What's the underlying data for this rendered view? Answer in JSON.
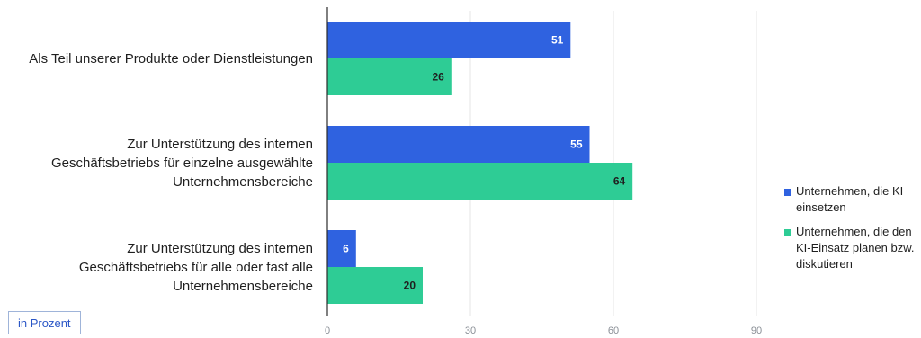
{
  "unit_label": "in Prozent",
  "colors": {
    "series1": "#2f62e0",
    "series2": "#2ecc95",
    "grid": "#e6e6e6",
    "axis": "#2b2b2b"
  },
  "chart_data": {
    "type": "bar",
    "orientation": "horizontal",
    "categories": [
      [
        "Als Teil unserer Produkte oder Dienstleistungen"
      ],
      [
        "Zur Unterstützung des internen",
        "Geschäftsbetriebs für einzelne ausgewählte",
        "Unternehmensbereiche"
      ],
      [
        "Zur Unterstützung des internen",
        "Geschäftsbetriebs für alle oder fast alle",
        "Unternehmensbereiche"
      ]
    ],
    "series": [
      {
        "name": "Unternehmen, die KI einsetzen",
        "values": [
          51,
          55,
          6
        ]
      },
      {
        "name": "Unternehmen, die den KI-Einsatz planen bzw. diskutieren",
        "values": [
          26,
          64,
          20
        ]
      }
    ],
    "xlim": [
      0,
      90
    ],
    "xticks": [
      "0",
      "30",
      "60",
      "90"
    ],
    "grid": true,
    "legend_position": "right"
  }
}
